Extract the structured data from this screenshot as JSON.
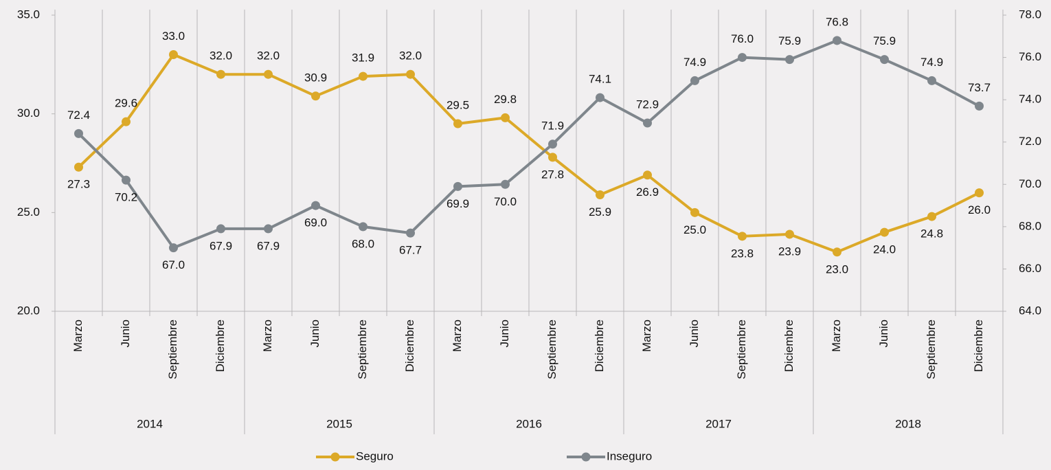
{
  "chart_data": {
    "type": "line",
    "categories": [
      "Marzo",
      "Junio",
      "Septiembre",
      "Diciembre",
      "Marzo",
      "Junio",
      "Septiembre",
      "Diciembre",
      "Marzo",
      "Junio",
      "Septiembre",
      "Diciembre",
      "Marzo",
      "Junio",
      "Septiembre",
      "Diciembre",
      "Marzo",
      "Junio",
      "Septiembre",
      "Diciembre"
    ],
    "groups": [
      "2014",
      "2015",
      "2016",
      "2017",
      "2018"
    ],
    "series": [
      {
        "name": "Seguro",
        "color": "#dca928",
        "values": [
          27.3,
          29.6,
          33.0,
          32.0,
          32.0,
          30.9,
          31.9,
          32.0,
          29.5,
          29.8,
          27.8,
          25.9,
          26.9,
          25.0,
          23.8,
          23.9,
          23.0,
          24.0,
          24.8,
          26.0
        ],
        "value_labels": [
          "27.3",
          "29.6",
          "33.0",
          "32.0",
          "32.0",
          "30.9",
          "31.9",
          "32.0",
          "29.5",
          "29.8",
          "27.8",
          "25.9",
          "26.9",
          "25.0",
          "23.8",
          "23.9",
          "23.0",
          "24.0",
          "24.8",
          "26.0"
        ]
      },
      {
        "name": "Inseguro",
        "color": "#7f868c",
        "axis": "y2",
        "values": [
          72.4,
          70.2,
          67.0,
          67.9,
          67.9,
          69.0,
          68.0,
          67.7,
          69.9,
          70.0,
          71.9,
          74.1,
          72.9,
          74.9,
          76.0,
          75.9,
          76.8,
          75.9,
          74.9,
          73.7
        ],
        "value_labels": [
          "72.4",
          "70.2",
          "67.0",
          "67.9",
          "67.9",
          "69.0",
          "68.0",
          "67.7",
          "69.9",
          "70.0",
          "71.9",
          "74.1",
          "72.9",
          "74.9",
          "76.0",
          "75.9",
          "76.8",
          "75.9",
          "74.9",
          "73.7"
        ]
      }
    ],
    "ylim": [
      20,
      35
    ],
    "yticks": [
      {
        "value": 20,
        "label": "20.0"
      },
      {
        "value": 25,
        "label": "25.0"
      },
      {
        "value": 30,
        "label": "30.0"
      },
      {
        "value": 35,
        "label": "35.0"
      }
    ],
    "y2lim": [
      64,
      78
    ],
    "y2ticks": [
      {
        "value": 64,
        "label": "64.0"
      },
      {
        "value": 66,
        "label": "66.0"
      },
      {
        "value": 68,
        "label": "68.0"
      },
      {
        "value": 70,
        "label": "70.0"
      },
      {
        "value": 72,
        "label": "72.0"
      },
      {
        "value": 74,
        "label": "74.0"
      },
      {
        "value": 76,
        "label": "76.0"
      },
      {
        "value": 78,
        "label": "78.0"
      }
    ],
    "legend": "bottom"
  }
}
